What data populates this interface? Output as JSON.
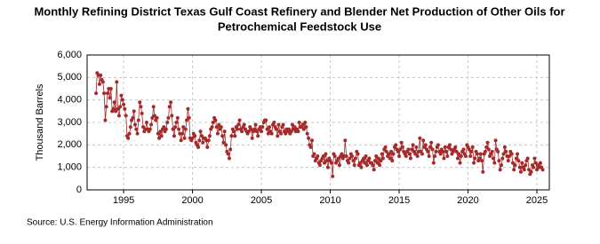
{
  "chart_data": {
    "type": "line",
    "title": "Monthly Refining District Texas Gulf Coast Refinery and Blender Net Production of Other Oils for Petrochemical Feedstock Use",
    "title_lines": [
      "Monthly Refining District Texas Gulf Coast Refinery and Blender Net Production of Other Oils for",
      "Petrochemical Feedstock Use"
    ],
    "ylabel": "Thousand Barrels",
    "source": "Source: U.S. Energy Information Administration",
    "color": "#a52a2a",
    "grid": true,
    "xlim": [
      1992.35,
      2025.9
    ],
    "xticks": [
      1995,
      2000,
      2005,
      2010,
      2015,
      2020,
      2025
    ],
    "ylim": [
      0,
      6000
    ],
    "yticks": [
      0,
      {
        "value": 1000,
        "label": "1,000"
      },
      {
        "value": 2000,
        "label": "2,000"
      },
      {
        "value": 3000,
        "label": "3,000"
      },
      {
        "value": 4000,
        "label": "4,000"
      },
      {
        "value": 5000,
        "label": "5,000"
      },
      {
        "value": 6000,
        "label": "6,000"
      }
    ],
    "x": [
      1993,
      1993.08,
      1993.17,
      1993.25,
      1993.33,
      1993.42,
      1993.5,
      1993.58,
      1993.67,
      1993.75,
      1993.83,
      1993.92,
      1994,
      1994.08,
      1994.17,
      1994.25,
      1994.33,
      1994.42,
      1994.5,
      1994.58,
      1994.67,
      1994.75,
      1994.83,
      1994.92,
      1995,
      1995.08,
      1995.17,
      1995.25,
      1995.33,
      1995.42,
      1995.5,
      1995.58,
      1995.67,
      1995.75,
      1995.83,
      1995.92,
      1996,
      1996.08,
      1996.17,
      1996.25,
      1996.33,
      1996.42,
      1996.5,
      1996.58,
      1996.67,
      1996.75,
      1996.83,
      1996.92,
      1997,
      1997.08,
      1997.17,
      1997.25,
      1997.33,
      1997.42,
      1997.5,
      1997.58,
      1997.67,
      1997.75,
      1997.83,
      1997.92,
      1998,
      1998.08,
      1998.17,
      1998.25,
      1998.33,
      1998.42,
      1998.5,
      1998.58,
      1998.67,
      1998.75,
      1998.83,
      1998.92,
      1999,
      1999.08,
      1999.17,
      1999.25,
      1999.33,
      1999.42,
      1999.5,
      1999.58,
      1999.67,
      1999.75,
      1999.83,
      1999.92,
      2000,
      2000.08,
      2000.17,
      2000.25,
      2000.33,
      2000.42,
      2000.5,
      2000.58,
      2000.67,
      2000.75,
      2000.83,
      2000.92,
      2001,
      2001.08,
      2001.17,
      2001.25,
      2001.33,
      2001.42,
      2001.5,
      2001.58,
      2001.67,
      2001.75,
      2001.83,
      2001.92,
      2002,
      2002.08,
      2002.17,
      2002.25,
      2002.33,
      2002.42,
      2002.5,
      2002.58,
      2002.67,
      2002.75,
      2002.83,
      2002.92,
      2003,
      2003.08,
      2003.17,
      2003.25,
      2003.33,
      2003.42,
      2003.5,
      2003.58,
      2003.67,
      2003.75,
      2003.83,
      2003.92,
      2004,
      2004.08,
      2004.17,
      2004.25,
      2004.33,
      2004.42,
      2004.5,
      2004.58,
      2004.67,
      2004.75,
      2004.83,
      2004.92,
      2005,
      2005.08,
      2005.17,
      2005.25,
      2005.33,
      2005.42,
      2005.5,
      2005.58,
      2005.67,
      2005.75,
      2005.83,
      2005.92,
      2006,
      2006.08,
      2006.17,
      2006.25,
      2006.33,
      2006.42,
      2006.5,
      2006.58,
      2006.67,
      2006.75,
      2006.83,
      2006.92,
      2007,
      2007.08,
      2007.17,
      2007.25,
      2007.33,
      2007.42,
      2007.5,
      2007.58,
      2007.67,
      2007.75,
      2007.83,
      2007.92,
      2008,
      2008.08,
      2008.17,
      2008.25,
      2008.33,
      2008.42,
      2008.5,
      2008.58,
      2008.67,
      2008.75,
      2008.83,
      2008.92,
      2009,
      2009.08,
      2009.17,
      2009.25,
      2009.33,
      2009.42,
      2009.5,
      2009.58,
      2009.67,
      2009.75,
      2009.83,
      2009.92,
      2010,
      2010.08,
      2010.17,
      2010.25,
      2010.33,
      2010.42,
      2010.5,
      2010.58,
      2010.67,
      2010.75,
      2010.83,
      2010.92,
      2011,
      2011.08,
      2011.17,
      2011.25,
      2011.33,
      2011.42,
      2011.5,
      2011.58,
      2011.67,
      2011.75,
      2011.83,
      2011.92,
      2012,
      2012.08,
      2012.17,
      2012.25,
      2012.33,
      2012.42,
      2012.5,
      2012.58,
      2012.67,
      2012.75,
      2012.83,
      2012.92,
      2013,
      2013.08,
      2013.17,
      2013.25,
      2013.33,
      2013.42,
      2013.5,
      2013.58,
      2013.67,
      2013.75,
      2013.83,
      2013.92,
      2014,
      2014.08,
      2014.17,
      2014.25,
      2014.33,
      2014.42,
      2014.5,
      2014.58,
      2014.67,
      2014.75,
      2014.83,
      2014.92,
      2015,
      2015.08,
      2015.17,
      2015.25,
      2015.33,
      2015.42,
      2015.5,
      2015.58,
      2015.67,
      2015.75,
      2015.83,
      2015.92,
      2016,
      2016.08,
      2016.17,
      2016.25,
      2016.33,
      2016.42,
      2016.5,
      2016.58,
      2016.67,
      2016.75,
      2016.83,
      2016.92,
      2017,
      2017.08,
      2017.17,
      2017.25,
      2017.33,
      2017.42,
      2017.5,
      2017.58,
      2017.67,
      2017.75,
      2017.83,
      2017.92,
      2018,
      2018.08,
      2018.17,
      2018.25,
      2018.33,
      2018.42,
      2018.5,
      2018.58,
      2018.67,
      2018.75,
      2018.83,
      2018.92,
      2019,
      2019.08,
      2019.17,
      2019.25,
      2019.33,
      2019.42,
      2019.5,
      2019.58,
      2019.67,
      2019.75,
      2019.83,
      2019.92,
      2020,
      2020.08,
      2020.17,
      2020.25,
      2020.33,
      2020.42,
      2020.5,
      2020.58,
      2020.67,
      2020.75,
      2020.83,
      2020.92,
      2021,
      2021.08,
      2021.17,
      2021.25,
      2021.33,
      2021.42,
      2021.5,
      2021.58,
      2021.67,
      2021.75,
      2021.83,
      2021.92,
      2022,
      2022.08,
      2022.17,
      2022.25,
      2022.33,
      2022.42,
      2022.5,
      2022.58,
      2022.67,
      2022.75,
      2022.83,
      2022.92,
      2023,
      2023.08,
      2023.17,
      2023.25,
      2023.33,
      2023.42,
      2023.5,
      2023.58,
      2023.67,
      2023.75,
      2023.83,
      2023.92,
      2024,
      2024.08,
      2024.17,
      2024.25,
      2024.33,
      2024.42,
      2024.5,
      2024.58,
      2024.67,
      2024.75,
      2024.83,
      2024.92,
      2025,
      2025.08,
      2025.17,
      2025.25,
      2025.33,
      2025.42
    ],
    "values": [
      4300,
      5200,
      5100,
      4700,
      5100,
      4900,
      4800,
      4300,
      3100,
      3700,
      4300,
      4500,
      4100,
      4500,
      3500,
      3600,
      3900,
      3500,
      4800,
      3600,
      3300,
      3700,
      4200,
      4000,
      3800,
      3600,
      3300,
      2400,
      2300,
      2500,
      2800,
      3100,
      3200,
      3500,
      2900,
      2700,
      2500,
      3100,
      3900,
      3700,
      3400,
      2800,
      2600,
      2700,
      3000,
      2700,
      2600,
      2700,
      2900,
      3200,
      3700,
      3300,
      3100,
      3200,
      2500,
      2300,
      2600,
      2400,
      2700,
      2800,
      2600,
      2700,
      3000,
      3200,
      3700,
      3900,
      3300,
      2700,
      2400,
      2800,
      3000,
      3200,
      2700,
      2500,
      2200,
      2500,
      2800,
      2300,
      2700,
      3100,
      3600,
      3200,
      2300,
      2200,
      2300,
      2500,
      2400,
      2100,
      2000,
      1900,
      2200,
      2600,
      2400,
      2100,
      2300,
      2300,
      2200,
      1900,
      2200,
      2400,
      2700,
      2800,
      3000,
      3200,
      3100,
      2800,
      2500,
      2900,
      2700,
      2800,
      2400,
      2100,
      2600,
      2000,
      1700,
      1600,
      1400,
      1800,
      2400,
      2700,
      2600,
      2400,
      2800,
      2700,
      2900,
      3100,
      2700,
      2600,
      2800,
      2900,
      2700,
      2600,
      2500,
      2600,
      2800,
      2700,
      2300,
      2600,
      2700,
      2900,
      2600,
      2400,
      2700,
      2800,
      2600,
      2800,
      3000,
      3100,
      3100,
      2700,
      2500,
      2800,
      2600,
      2500,
      2900,
      3000,
      2800,
      2700,
      2400,
      2900,
      2600,
      2500,
      2800,
      2900,
      2600,
      2500,
      2700,
      2600,
      2700,
      2500,
      2600,
      2900,
      2700,
      2800,
      2600,
      2700,
      2600,
      3000,
      2800,
      2800,
      2900,
      2700,
      3000,
      2800,
      2500,
      2300,
      2000,
      1900,
      2200,
      1500,
      1600,
      1300,
      1400,
      1500,
      1200,
      1100,
      1300,
      1400,
      1500,
      1200,
      1600,
      1300,
      1000,
      1400,
      1300,
      1200,
      600,
      1600,
      1500,
      1200,
      1300,
      1400,
      1100,
      1500,
      1600,
      1400,
      1500,
      2200,
      1500,
      1300,
      1200,
      1400,
      1600,
      1500,
      1300,
      1100,
      1400,
      1700,
      1600,
      1100,
      1200,
      1000,
      1300,
      1400,
      1200,
      1500,
      1100,
      1300,
      1400,
      1200,
      1200,
      1100,
      900,
      1300,
      1500,
      1200,
      1400,
      1100,
      1300,
      1600,
      1400,
      1800,
      1900,
      1700,
      1500,
      1600,
      1400,
      1700,
      1300,
      1600,
      1900,
      2000,
      1800,
      1700,
      1500,
      1800,
      2100,
      1900,
      1700,
      1600,
      1500,
      1700,
      1800,
      1600,
      1400,
      1800,
      2000,
      1700,
      1600,
      1900,
      1500,
      1700,
      2300,
      1700,
      1600,
      2200,
      1900,
      2000,
      1800,
      1700,
      1500,
      1900,
      2100,
      1800,
      1200,
      1500,
      1700,
      1900,
      2000,
      1700,
      1600,
      1800,
      1700,
      1400,
      1900,
      1700,
      1500,
      1900,
      2000,
      1800,
      1600,
      1700,
      1800,
      1900,
      1700,
      1400,
      1600,
      1200,
      1500,
      1700,
      1800,
      1600,
      1500,
      2000,
      1900,
      1800,
      1500,
      1700,
      1900,
      1200,
      1400,
      1700,
      1600,
      1300,
      1400,
      1600,
      1300,
      800,
      1600,
      1700,
      1900,
      2100,
      1800,
      1500,
      1600,
      1700,
      1400,
      1200,
      2200,
      1800,
      1700,
      1300,
      900,
      1100,
      1400,
      1600,
      1900,
      1700,
      1500,
      1300,
      1500,
      1700,
      1600,
      1200,
      900,
      1100,
      1400,
      1600,
      1300,
      1000,
      800,
      1200,
      1000,
      900,
      1100,
      1300,
      1400,
      900,
      700,
      800,
      1100,
      1000,
      1400,
      1200,
      900,
      1100,
      1000,
      1200,
      1000,
      900
    ]
  }
}
